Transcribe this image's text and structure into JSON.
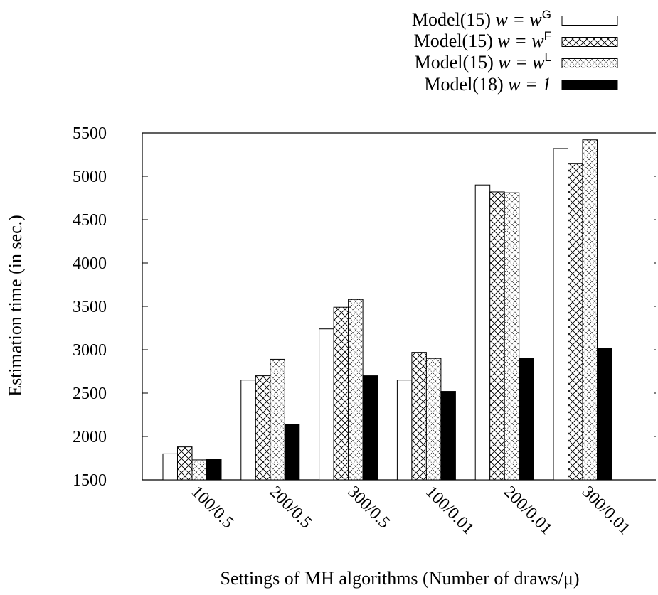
{
  "chart_data": {
    "type": "bar",
    "xlabel": "Settings of MH algorithms (Number of draws/μ)",
    "ylabel": "Estimation time (in sec.)",
    "ylim": [
      1500,
      5500
    ],
    "yticks": [
      1500,
      2000,
      2500,
      3000,
      3500,
      4000,
      4500,
      5000,
      5500
    ],
    "categories": [
      "100/0.5",
      "200/0.5",
      "300/0.5",
      "100/0.01",
      "200/0.01",
      "300/0.01"
    ],
    "legend_position": "top-right",
    "series": [
      {
        "name": "Model(15) w = w^G",
        "label_main": "Model(15) ",
        "label_w": "w = w",
        "label_sup": "G",
        "pattern": "solid-white",
        "values": [
          1800,
          2650,
          3240,
          2650,
          4900,
          5320
        ]
      },
      {
        "name": "Model(15) w = w^F",
        "label_main": "Model(15) ",
        "label_w": "w = w",
        "label_sup": "F",
        "pattern": "crosshatch",
        "values": [
          1880,
          2700,
          3490,
          2970,
          4820,
          5150
        ]
      },
      {
        "name": "Model(15) w = w^L",
        "label_main": "Model(15) ",
        "label_w": "w = w",
        "label_sup": "L",
        "pattern": "dotted-diamond",
        "values": [
          1730,
          2890,
          3580,
          2900,
          4810,
          5420
        ]
      },
      {
        "name": "Model(18) w = 1",
        "label_main": "Model(18) ",
        "label_w": "w = 1",
        "label_sup": "",
        "pattern": "solid-black",
        "values": [
          1740,
          2140,
          2700,
          2520,
          2900,
          3020
        ]
      }
    ]
  }
}
